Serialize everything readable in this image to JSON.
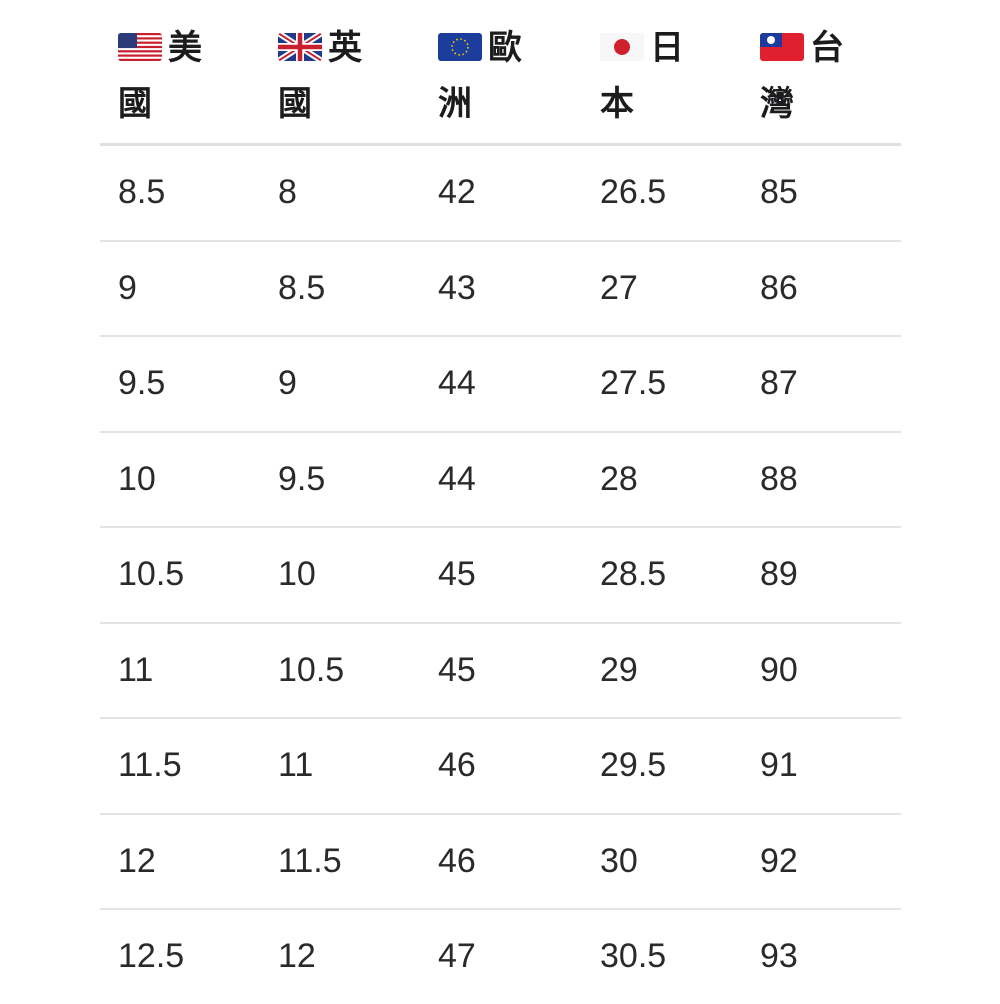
{
  "headers": [
    {
      "flag": "us-flag-icon",
      "label": "美國"
    },
    {
      "flag": "uk-flag-icon",
      "label": "英國"
    },
    {
      "flag": "eu-flag-icon",
      "label": "歐洲"
    },
    {
      "flag": "japan-flag-icon",
      "label": "日本"
    },
    {
      "flag": "taiwan-flag-icon",
      "label": "台灣"
    }
  ],
  "rows": [
    [
      "8.5",
      "8",
      "42",
      "26.5",
      "85"
    ],
    [
      "9",
      "8.5",
      "43",
      "27",
      "86"
    ],
    [
      "9.5",
      "9",
      "44",
      "27.5",
      "87"
    ],
    [
      "10",
      "9.5",
      "44",
      "28",
      "88"
    ],
    [
      "10.5",
      "10",
      "45",
      "28.5",
      "89"
    ],
    [
      "11",
      "10.5",
      "45",
      "29",
      "90"
    ],
    [
      "11.5",
      "11",
      "46",
      "29.5",
      "91"
    ],
    [
      "12",
      "11.5",
      "46",
      "30",
      "92"
    ],
    [
      "12.5",
      "12",
      "47",
      "30.5",
      "93"
    ]
  ]
}
